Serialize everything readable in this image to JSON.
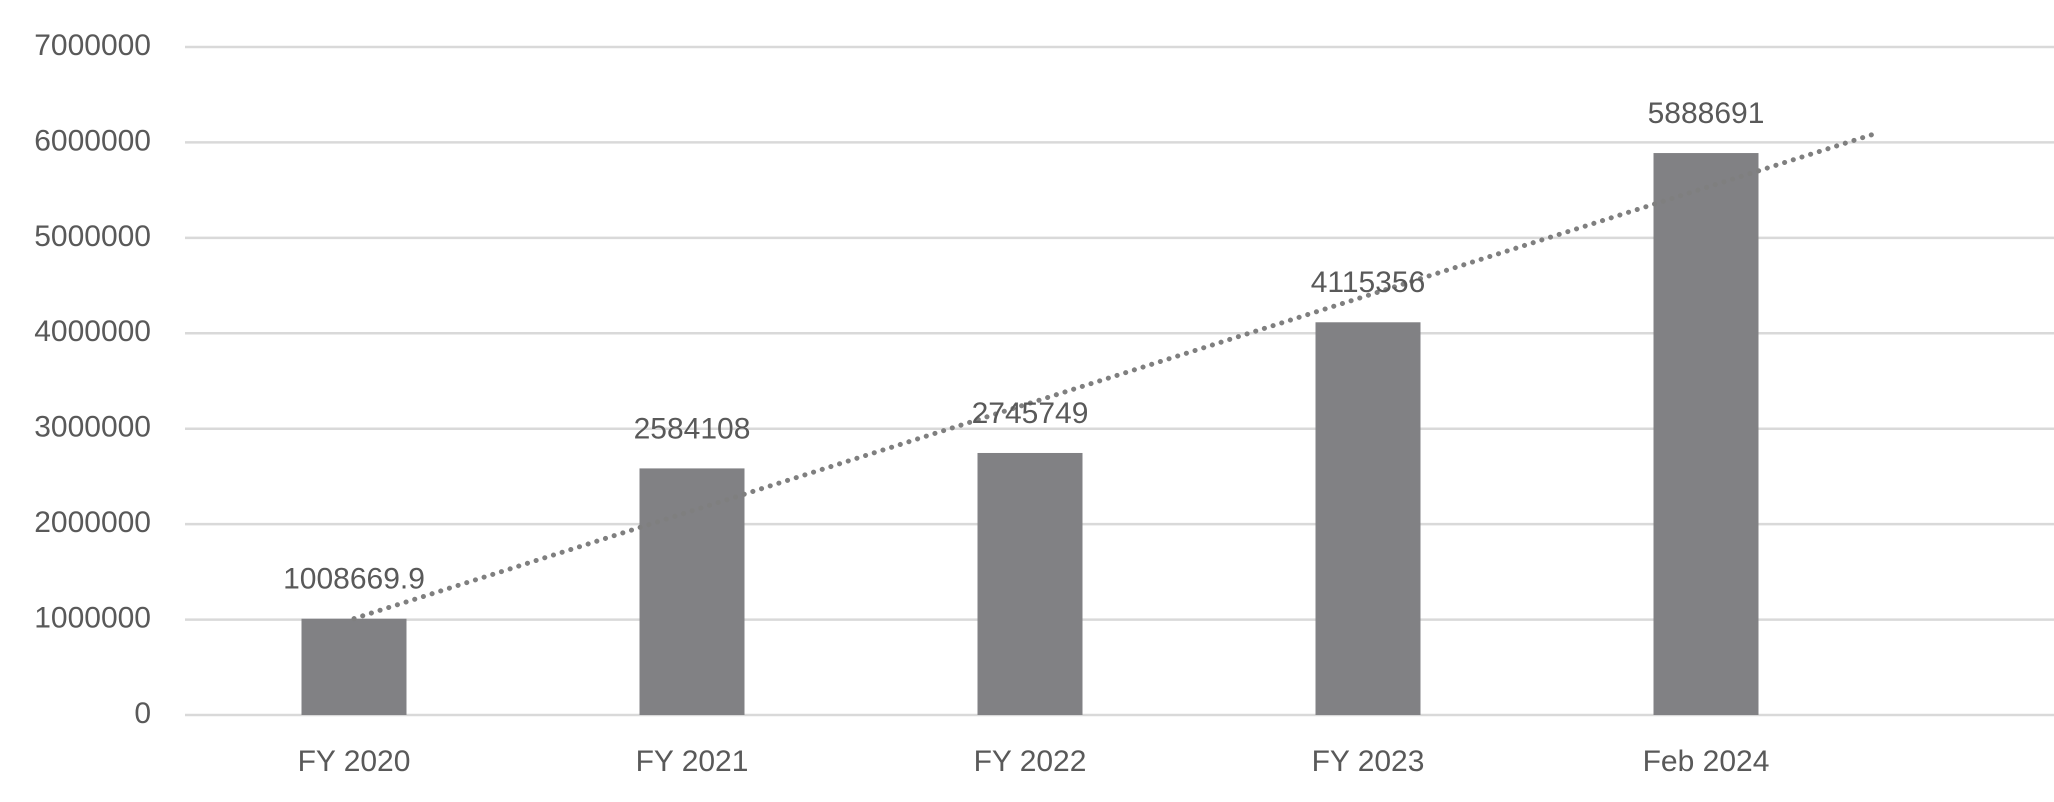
{
  "chart_data": {
    "type": "bar",
    "categories": [
      "FY 2020",
      "FY 2021",
      "FY 2022",
      "FY 2023",
      "Feb 2024"
    ],
    "values": [
      1008669.9,
      2584108,
      2745749,
      4115356,
      5888691
    ],
    "color": "#818184",
    "ylim": [
      0,
      7000000
    ],
    "yticks": [
      0,
      1000000,
      2000000,
      3000000,
      4000000,
      5000000,
      6000000,
      7000000
    ],
    "grid": true,
    "trendline": true
  }
}
